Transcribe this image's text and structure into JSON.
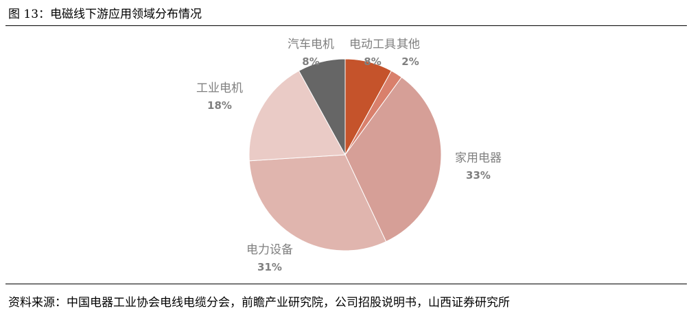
{
  "title": "图 13：电磁线下游应用领域分布情况",
  "source": "资料来源：中国电器工业协会电线电缆分会，前瞻产业研究院，公司招股说明书，山西证券研究所",
  "chart_data": {
    "type": "pie",
    "title": "",
    "slices": [
      {
        "label": "电动工具",
        "value": 8,
        "pct": "8%",
        "color": "#c5532b"
      },
      {
        "label": "其他",
        "value": 2,
        "pct": "2%",
        "color": "#d9806c"
      },
      {
        "label": "家用电器",
        "value": 33,
        "pct": "33%",
        "color": "#d69f97"
      },
      {
        "label": "电力设备",
        "value": 31,
        "pct": "31%",
        "color": "#e0b5ae"
      },
      {
        "label": "工业电机",
        "value": 18,
        "pct": "18%",
        "color": "#eacbc6"
      },
      {
        "label": "汽车电机",
        "value": 8,
        "pct": "8%",
        "color": "#666666"
      }
    ],
    "start": "12 o'clock",
    "direction": "clockwise"
  }
}
